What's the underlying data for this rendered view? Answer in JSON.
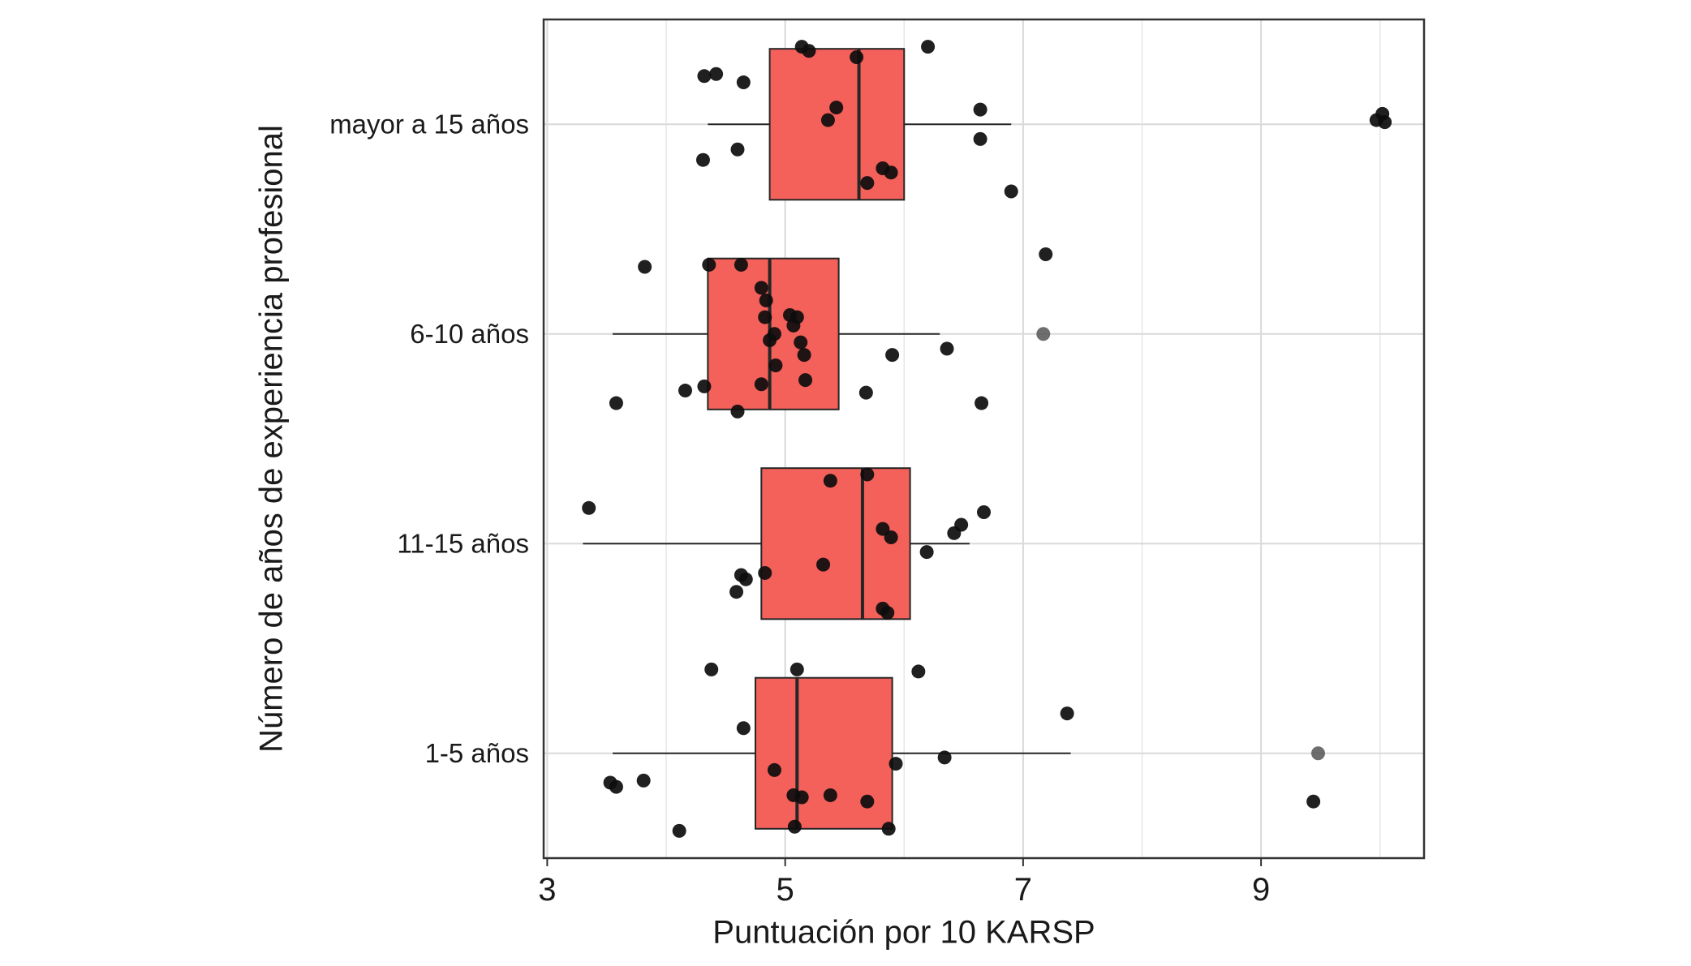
{
  "chart_data": {
    "type": "boxplot",
    "orientation": "horizontal",
    "title": "",
    "xlabel": "Puntuación por 10 KARSP",
    "ylabel": "Número de años de experiencia profesional",
    "xlim": [
      2.97,
      10.37
    ],
    "xticks": [
      3,
      5,
      7,
      9
    ],
    "xticks_minor": [
      4,
      6,
      8,
      10
    ],
    "grid": true,
    "categories": [
      "mayor a 15 años",
      "6-10 años",
      "11-15 años",
      "1-5 años"
    ],
    "boxes": [
      {
        "category": "mayor a 15 años",
        "whisker_low": 4.35,
        "q1": 4.87,
        "median": 5.62,
        "q3": 6.0,
        "whisker_high": 6.9
      },
      {
        "category": "6-10 años",
        "whisker_low": 3.55,
        "q1": 4.35,
        "median": 4.87,
        "q3": 5.45,
        "whisker_high": 6.3
      },
      {
        "category": "11-15 años",
        "whisker_low": 3.3,
        "q1": 4.8,
        "median": 5.65,
        "q3": 6.05,
        "whisker_high": 6.55
      },
      {
        "category": "1-5 años",
        "whisker_low": 3.55,
        "q1": 4.75,
        "median": 5.1,
        "q3": 5.9,
        "whisker_high": 7.4
      }
    ],
    "points": [
      [
        0,
        5.14,
        -0.37
      ],
      [
        0,
        5.2,
        -0.35
      ],
      [
        0,
        6.2,
        -0.37
      ],
      [
        0,
        4.32,
        -0.23
      ],
      [
        0,
        4.42,
        -0.24
      ],
      [
        0,
        4.65,
        -0.2
      ],
      [
        0,
        5.6,
        -0.32
      ],
      [
        0,
        5.36,
        -0.02
      ],
      [
        0,
        5.43,
        -0.08
      ],
      [
        0,
        6.64,
        -0.07
      ],
      [
        0,
        9.97,
        -0.02
      ],
      [
        0,
        10.02,
        -0.05
      ],
      [
        0,
        10.04,
        -0.01
      ],
      [
        0,
        4.31,
        0.17
      ],
      [
        0,
        4.6,
        0.12
      ],
      [
        0,
        5.69,
        0.28
      ],
      [
        0,
        5.82,
        0.21
      ],
      [
        0,
        5.89,
        0.23
      ],
      [
        0,
        6.64,
        0.07
      ],
      [
        0,
        6.9,
        0.32
      ],
      [
        1,
        7.19,
        -0.38
      ],
      [
        1,
        3.82,
        -0.32
      ],
      [
        1,
        4.36,
        -0.33
      ],
      [
        1,
        4.63,
        -0.33
      ],
      [
        1,
        4.8,
        -0.22
      ],
      [
        1,
        4.84,
        -0.16
      ],
      [
        1,
        4.83,
        -0.08
      ],
      [
        1,
        5.04,
        -0.09
      ],
      [
        1,
        5.1,
        -0.08
      ],
      [
        1,
        5.07,
        -0.04
      ],
      [
        1,
        4.91,
        0.0
      ],
      [
        1,
        4.87,
        0.03
      ],
      [
        1,
        5.13,
        0.04
      ],
      [
        1,
        5.16,
        0.1
      ],
      [
        1,
        4.92,
        0.15
      ],
      [
        1,
        5.17,
        0.22
      ],
      [
        1,
        4.8,
        0.24
      ],
      [
        1,
        4.16,
        0.27
      ],
      [
        1,
        4.32,
        0.25
      ],
      [
        1,
        3.58,
        0.33
      ],
      [
        1,
        4.6,
        0.37
      ],
      [
        1,
        5.68,
        0.28
      ],
      [
        1,
        5.9,
        0.1
      ],
      [
        1,
        6.36,
        0.07
      ],
      [
        1,
        6.65,
        0.33
      ],
      [
        1,
        7.17,
        0.0,
        1
      ],
      [
        2,
        3.35,
        -0.17
      ],
      [
        2,
        5.38,
        -0.3
      ],
      [
        2,
        5.69,
        -0.33
      ],
      [
        2,
        5.82,
        -0.07
      ],
      [
        2,
        5.89,
        -0.03
      ],
      [
        2,
        6.19,
        0.04
      ],
      [
        2,
        6.42,
        -0.05
      ],
      [
        2,
        6.48,
        -0.09
      ],
      [
        2,
        6.67,
        -0.15
      ],
      [
        2,
        5.32,
        0.1
      ],
      [
        2,
        4.63,
        0.15
      ],
      [
        2,
        4.67,
        0.17
      ],
      [
        2,
        4.83,
        0.14
      ],
      [
        2,
        4.59,
        0.23
      ],
      [
        2,
        5.82,
        0.31
      ],
      [
        2,
        5.86,
        0.33
      ],
      [
        3,
        4.38,
        -0.4
      ],
      [
        3,
        5.1,
        -0.4
      ],
      [
        3,
        6.12,
        -0.39
      ],
      [
        3,
        4.65,
        -0.12
      ],
      [
        3,
        7.37,
        -0.19
      ],
      [
        3,
        6.34,
        0.02
      ],
      [
        3,
        5.93,
        0.05
      ],
      [
        3,
        4.91,
        0.08
      ],
      [
        3,
        3.81,
        0.13
      ],
      [
        3,
        3.53,
        0.14
      ],
      [
        3,
        3.58,
        0.16
      ],
      [
        3,
        5.07,
        0.2
      ],
      [
        3,
        5.14,
        0.21
      ],
      [
        3,
        5.38,
        0.2
      ],
      [
        3,
        5.69,
        0.23
      ],
      [
        3,
        5.08,
        0.35
      ],
      [
        3,
        5.87,
        0.36
      ],
      [
        3,
        4.11,
        0.37
      ],
      [
        3,
        9.48,
        0.0,
        1
      ],
      [
        3,
        9.44,
        0.23
      ]
    ],
    "colors": {
      "box_fill": "#f4605a",
      "box_stroke": "#262626",
      "median": "#262626",
      "whisker": "#262626",
      "grid_major": "#d9d9d9",
      "grid_minor": "#e7e7e7",
      "panel_border": "#333333",
      "point": "#0d0d0d",
      "point_gray": "#555555",
      "text": "#1a1a1a",
      "background": "#ffffff"
    }
  }
}
